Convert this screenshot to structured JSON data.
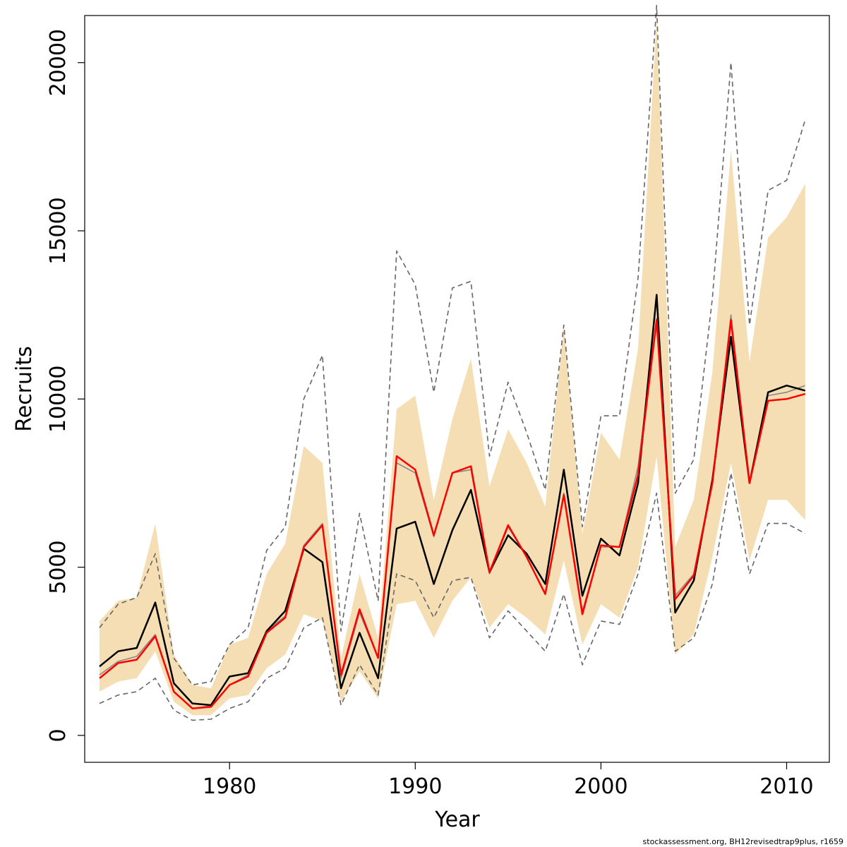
{
  "chart_data": {
    "type": "line",
    "xlabel": "Year",
    "ylabel": "Recruits",
    "xlim": [
      1972.2,
      2012.3
    ],
    "ylim": [
      -800,
      21400
    ],
    "x_ticks": [
      1980,
      1990,
      2000,
      2010
    ],
    "y_ticks": [
      0,
      5000,
      10000,
      15000,
      20000
    ],
    "grid": false,
    "legend": "none",
    "footer": "stockassessment.org, BH12revisedtrap9plus, r1659",
    "colors": {
      "band_fill": "#f5deb3",
      "dashed_line": "#666666",
      "grey_line": "#888888",
      "black_line": "#000000",
      "red_line": "#ff0000"
    },
    "x": [
      1973,
      1974,
      1975,
      1976,
      1977,
      1978,
      1979,
      1980,
      1981,
      1982,
      1983,
      1984,
      1985,
      1986,
      1987,
      1988,
      1989,
      1990,
      1991,
      1992,
      1993,
      1994,
      1995,
      1996,
      1997,
      1998,
      1999,
      2000,
      2001,
      2002,
      2003,
      2004,
      2005,
      2006,
      2007,
      2008,
      2009,
      2010,
      2011
    ],
    "band": {
      "lower": [
        1300,
        1600,
        1700,
        2500,
        1000,
        600,
        600,
        1100,
        1200,
        2000,
        2400,
        3600,
        3400,
        1000,
        1900,
        1100,
        3900,
        4000,
        2900,
        4000,
        4700,
        3200,
        3900,
        3500,
        3000,
        5200,
        2700,
        3900,
        3500,
        5000,
        8300,
        2400,
        3000,
        5300,
        8100,
        5200,
        7000,
        7000,
        6400
      ],
      "upper": [
        3400,
        4000,
        4100,
        6300,
        2400,
        1500,
        1400,
        2700,
        2900,
        4800,
        5700,
        8600,
        8100,
        2300,
        4800,
        2900,
        9700,
        10100,
        7000,
        9400,
        11200,
        7400,
        9100,
        8100,
        6800,
        12100,
        6000,
        9000,
        8200,
        11500,
        21300,
        5600,
        7000,
        10800,
        17400,
        11100,
        14800,
        15400,
        16400
      ]
    },
    "series": [
      {
        "style": "dashed-upper",
        "values": [
          3200,
          3900,
          4100,
          5400,
          2300,
          1500,
          1600,
          2700,
          3200,
          5500,
          6200,
          10000,
          11300,
          3100,
          6600,
          4000,
          14400,
          13400,
          10200,
          13300,
          13500,
          8300,
          10500,
          9000,
          7300,
          12200,
          6200,
          9500,
          9500,
          13600,
          21700,
          7200,
          8200,
          13000,
          20000,
          12200,
          16200,
          16500,
          18300
        ]
      },
      {
        "style": "dashed-lower",
        "values": [
          950,
          1200,
          1300,
          1700,
          750,
          450,
          480,
          800,
          1000,
          1700,
          2000,
          3200,
          3500,
          900,
          2100,
          1200,
          4800,
          4600,
          3500,
          4600,
          4700,
          2900,
          3700,
          3100,
          2500,
          4200,
          2100,
          3400,
          3300,
          4800,
          7200,
          2500,
          2900,
          4500,
          7800,
          4800,
          6300,
          6300,
          6000
        ]
      },
      {
        "style": "grey-solid",
        "values": [
          1800,
          2200,
          2350,
          3000,
          1300,
          800,
          880,
          1500,
          1800,
          3100,
          3550,
          5650,
          6300,
          1700,
          3650,
          2300,
          8100,
          7800,
          5900,
          7800,
          7900,
          4800,
          6200,
          5300,
          4200,
          7200,
          3700,
          5600,
          5600,
          8000,
          12400,
          4150,
          4800,
          7600,
          12500,
          7500,
          10100,
          10200,
          10400
        ]
      },
      {
        "style": "black-solid",
        "values": [
          2050,
          2500,
          2600,
          3950,
          1550,
          950,
          900,
          1750,
          1850,
          3100,
          3700,
          5550,
          5150,
          1400,
          3050,
          1700,
          6150,
          6350,
          4500,
          6100,
          7300,
          4850,
          5950,
          5400,
          4500,
          7900,
          4150,
          5850,
          5350,
          7500,
          13100,
          3650,
          4600,
          7600,
          11850,
          7500,
          10200,
          10400,
          10250
        ]
      },
      {
        "style": "red-solid",
        "values": [
          1700,
          2150,
          2250,
          2950,
          1300,
          800,
          850,
          1500,
          1750,
          3050,
          3500,
          5600,
          6250,
          1800,
          3750,
          2300,
          8300,
          7900,
          5950,
          7800,
          8000,
          4850,
          6250,
          5300,
          4200,
          7150,
          3600,
          5650,
          5600,
          7750,
          12350,
          4050,
          4750,
          7500,
          12350,
          7500,
          9950,
          10000,
          10150
        ]
      }
    ]
  }
}
